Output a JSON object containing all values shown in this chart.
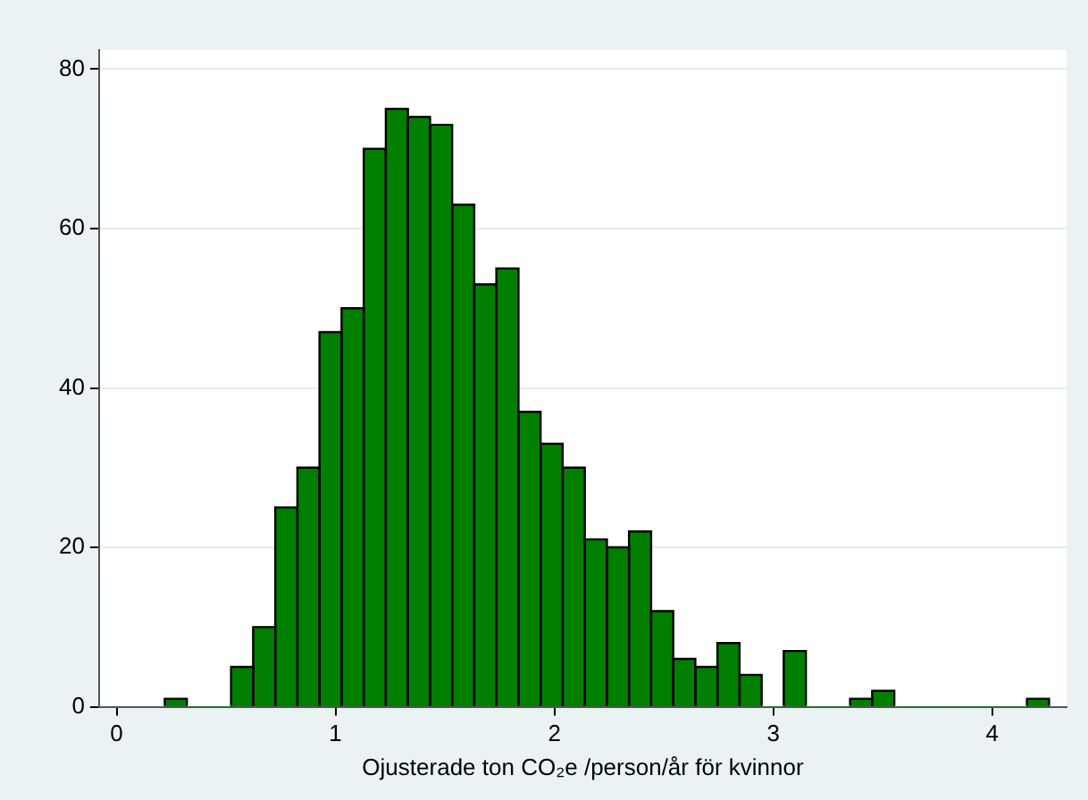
{
  "chart_data": {
    "type": "histogram",
    "xlabel": "Ojusterade ton CO₂e /person/år för kvinnor",
    "bins": [
      0.22,
      0.321,
      0.422,
      0.523,
      0.624,
      0.725,
      0.826,
      0.927,
      1.028,
      1.129,
      1.23,
      1.331,
      1.432,
      1.533,
      1.634,
      1.735,
      1.836,
      1.937,
      2.038,
      2.139,
      2.24,
      2.341,
      2.442,
      2.543,
      2.644,
      2.745,
      2.846,
      2.947,
      3.048,
      3.149,
      3.25,
      3.351,
      3.452,
      3.553,
      3.654,
      3.755,
      3.856,
      3.957,
      4.058,
      4.159,
      4.26
    ],
    "values": [
      1,
      0,
      0,
      5,
      10,
      25,
      30,
      47,
      50,
      70,
      75,
      74,
      73,
      63,
      53,
      55,
      37,
      33,
      30,
      21,
      20,
      22,
      12,
      6,
      5,
      8,
      4,
      0,
      7,
      0,
      0,
      1,
      2,
      0,
      0,
      0,
      0,
      0,
      0,
      1
    ],
    "color": "#007f00",
    "xlim": [
      -0.08,
      4.34
    ],
    "xticks": [
      0,
      1,
      2,
      3,
      4
    ],
    "ylim": [
      0,
      82.4
    ],
    "yticks": [
      0,
      20,
      40,
      60,
      80
    ],
    "grid": "y"
  }
}
